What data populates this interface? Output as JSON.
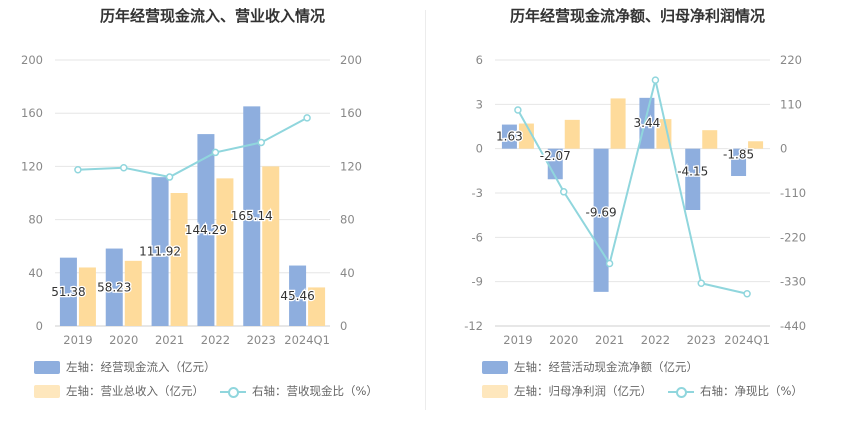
{
  "chart_data": [
    {
      "type": "bar",
      "title": "历年经营现金流入、营业收入情况",
      "categories": [
        "2019",
        "2020",
        "2021",
        "2022",
        "2023",
        "2024Q1"
      ],
      "y_left": {
        "ticks": [
          "0",
          "40",
          "80",
          "120",
          "160",
          "200"
        ],
        "lim": [
          0,
          200
        ]
      },
      "y_right": {
        "ticks": [
          "0",
          "40",
          "80",
          "120",
          "160",
          "200"
        ],
        "lim": [
          0,
          200
        ]
      },
      "series": [
        {
          "name": "左轴：经营现金流入（亿元）",
          "kind": "bar",
          "axis": "left",
          "color": "#8eaede",
          "values": [
            51.38,
            58.23,
            111.92,
            144.29,
            165.14,
            45.46
          ],
          "labels": [
            "51.38",
            "58.23",
            "111.92",
            "144.29",
            "165.14",
            "45.46"
          ]
        },
        {
          "name": "左轴：营业总收入（亿元）",
          "kind": "bar",
          "axis": "left",
          "color": "#fedb9b",
          "values": [
            44,
            49,
            100,
            111,
            120,
            29
          ]
        },
        {
          "name": "右轴：营收现金比（%）",
          "kind": "line",
          "axis": "right",
          "color": "#90d6dd",
          "values": [
            117.5,
            119,
            112,
            130.5,
            138,
            156.5
          ]
        }
      ],
      "legend": "bottom"
    },
    {
      "type": "bar",
      "title": "历年经营现金流净额、归母净利润情况",
      "categories": [
        "2019",
        "2020",
        "2021",
        "2022",
        "2023",
        "2024Q1"
      ],
      "y_left": {
        "ticks": [
          "-12",
          "-9",
          "-6",
          "-3",
          "0",
          "3",
          "6"
        ],
        "lim": [
          -12,
          6
        ]
      },
      "y_right": {
        "ticks": [
          "-440",
          "-330",
          "-220",
          "-110",
          "0",
          "110",
          "220"
        ],
        "lim": [
          -440,
          220
        ]
      },
      "series": [
        {
          "name": "左轴：经营活动现金流净额（亿元）",
          "kind": "bar",
          "axis": "left",
          "color": "#8eaede",
          "values": [
            1.63,
            -2.07,
            -9.69,
            3.44,
            -4.15,
            -1.85
          ],
          "labels": [
            "1.63",
            "-2.07",
            "-9.69",
            "3.44",
            "-4.15",
            "-1.85"
          ]
        },
        {
          "name": "左轴：归母净利润（亿元）",
          "kind": "bar",
          "axis": "left",
          "color": "#fedb9b",
          "values": [
            1.7,
            1.95,
            3.4,
            2.0,
            1.25,
            0.5
          ]
        },
        {
          "name": "右轴：净现比（%）",
          "kind": "line",
          "axis": "right",
          "color": "#90d6dd",
          "values": [
            96,
            -107,
            -285,
            170,
            -334,
            -360
          ]
        }
      ],
      "legend": "bottom"
    }
  ]
}
